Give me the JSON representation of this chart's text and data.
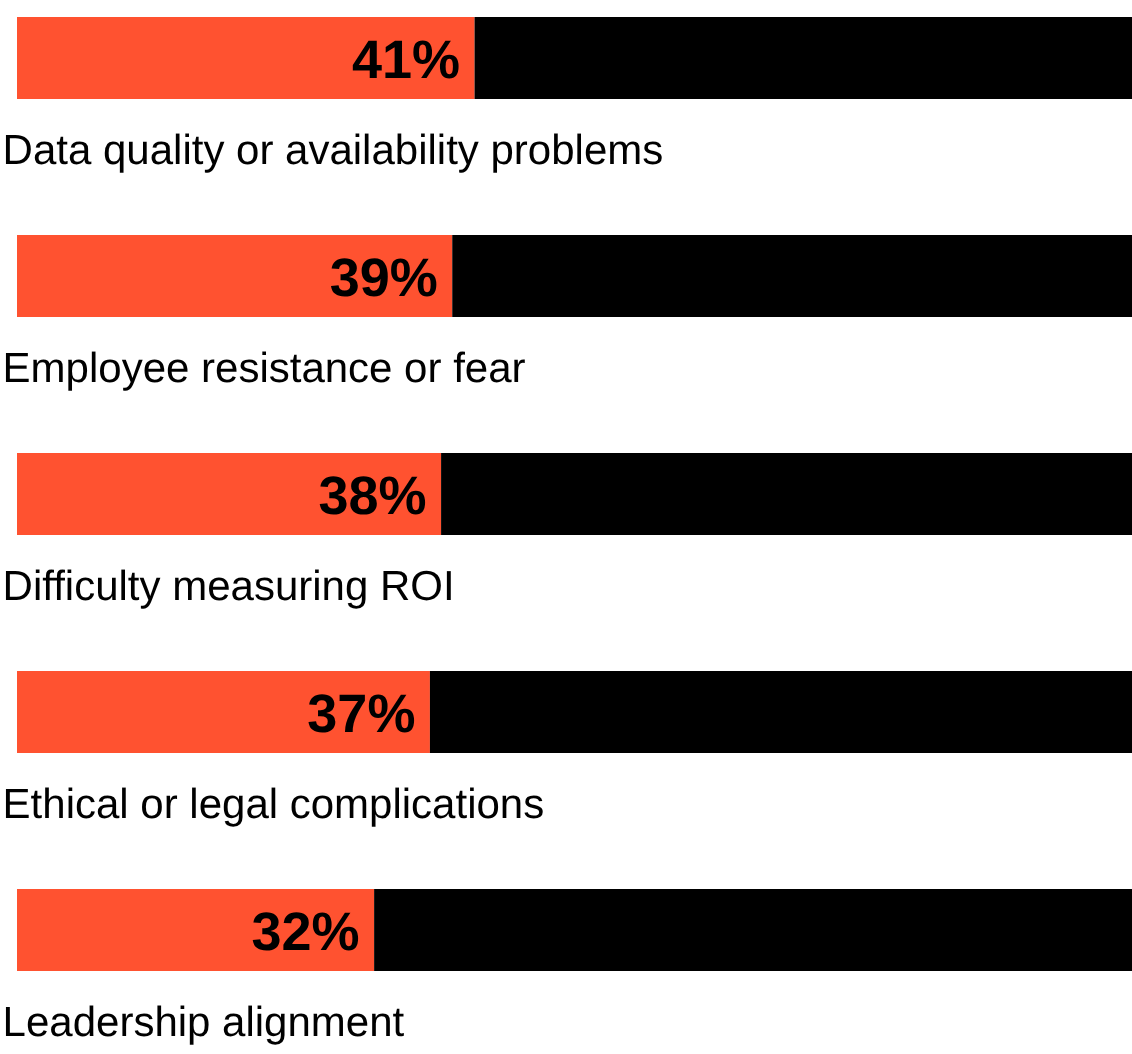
{
  "chart_data": {
    "type": "bar",
    "orientation": "horizontal",
    "stacked": true,
    "categories": [
      "Data quality or availability problems",
      "Employee resistance or fear",
      "Difficulty measuring ROI",
      "Ethical or legal complications",
      "Leadership alignment"
    ],
    "series": [
      {
        "color": "#ff5230",
        "values": [
          41,
          39,
          38,
          37,
          32
        ],
        "value_labels": [
          "41%",
          "39%",
          "38%",
          "37%",
          "32%"
        ]
      },
      {
        "color": "#000000",
        "values": [
          59,
          61,
          62,
          63,
          68
        ]
      }
    ],
    "xlim": [
      0,
      100
    ],
    "tick_labels": false,
    "grid": false
  }
}
